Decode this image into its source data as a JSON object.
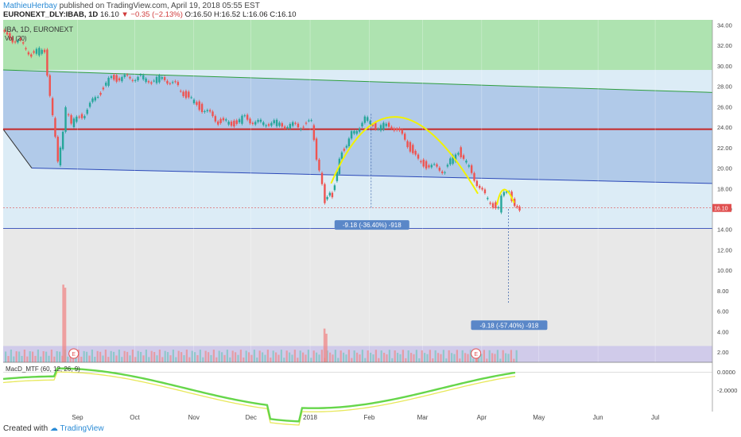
{
  "header": {
    "author": "MathieuHerbay",
    "published": "published on TradingView.com, April 19, 2018 05:55 EST"
  },
  "symbol_bar": {
    "symbol": "EURONEXT_DLY:IBAB, 1D",
    "last": "16.10",
    "change": "−0.35 (−2.13%)",
    "open": "O:16.50",
    "high": "H:16.52",
    "low": "L:16.06",
    "close": "C:16.10"
  },
  "legend": {
    "main": "IBA, 1D, EURONEXT",
    "volume": "Vol (20)",
    "macd": "MacD_MTF (60, 12, 26, 9)"
  },
  "price_tag": "16.10",
  "measurements": [
    {
      "label": "-9.18 (-36.40%) -918"
    },
    {
      "label": "-9.18 (-57.40%) -918"
    }
  ],
  "earnings_marker": "E",
  "footer": {
    "created_with": "Created with",
    "brand": "TradingView"
  },
  "colors": {
    "up": "#26a69a",
    "down": "#ef5350",
    "green_zone": "#a8e2a8",
    "blue_channel": "#a9c4e6",
    "resistance": "#c62828",
    "arc": "#f2f200",
    "macd_green": "#66d64a",
    "macd_red": "#e8382f"
  },
  "chart_data": {
    "type": "candlestick",
    "title": "IBA, 1D, EURONEXT",
    "x_ticks": [
      "Sep",
      "Oct",
      "Nov",
      "Dec",
      "2018",
      "Feb",
      "Mar",
      "Apr",
      "May",
      "Jun",
      "Jul"
    ],
    "price_axis": {
      "ticks": [
        "34.00",
        "32.00",
        "30.00",
        "28.00",
        "26.00",
        "24.00",
        "22.00",
        "20.00",
        "18.00",
        "16.00",
        "14.00",
        "12.00",
        "10.00",
        "8.00",
        "6.00",
        "4.00",
        "2.00"
      ],
      "range": [
        1.0,
        34.5
      ]
    },
    "macd_axis": {
      "ticks": [
        "0.0000",
        "-2.0000"
      ],
      "range": [
        -4.2,
        0.9
      ]
    },
    "close_series": [
      [
        "2017-07-24",
        33.0
      ],
      [
        "2017-07-31",
        32.4
      ],
      [
        "2017-08-07",
        31.2
      ],
      [
        "2017-08-14",
        31.6
      ],
      [
        "2017-08-21",
        20.5
      ],
      [
        "2017-08-25",
        25.6
      ],
      [
        "2017-08-28",
        24.3
      ],
      [
        "2017-09-04",
        25.4
      ],
      [
        "2017-09-11",
        27.2
      ],
      [
        "2017-09-18",
        28.8
      ],
      [
        "2017-09-25",
        28.8
      ],
      [
        "2017-10-02",
        28.9
      ],
      [
        "2017-10-09",
        28.6
      ],
      [
        "2017-10-16",
        28.8
      ],
      [
        "2017-10-23",
        27.9
      ],
      [
        "2017-10-30",
        26.6
      ],
      [
        "2017-11-06",
        25.6
      ],
      [
        "2017-11-13",
        24.6
      ],
      [
        "2017-11-20",
        24.3
      ],
      [
        "2017-11-27",
        24.9
      ],
      [
        "2017-12-04",
        24.4
      ],
      [
        "2017-12-11",
        24.5
      ],
      [
        "2017-12-18",
        24.2
      ],
      [
        "2017-12-25",
        24.1
      ],
      [
        "2018-01-01",
        24.4
      ],
      [
        "2018-01-05",
        19.5
      ],
      [
        "2018-01-08",
        16.7
      ],
      [
        "2018-01-12",
        17.5
      ],
      [
        "2018-01-17",
        21.6
      ],
      [
        "2018-01-22",
        23.3
      ],
      [
        "2018-01-29",
        24.8
      ],
      [
        "2018-02-05",
        24.0
      ],
      [
        "2018-02-12",
        24.2
      ],
      [
        "2018-02-19",
        22.8
      ],
      [
        "2018-02-26",
        20.6
      ],
      [
        "2018-03-05",
        20.1
      ],
      [
        "2018-03-12",
        19.8
      ],
      [
        "2018-03-19",
        21.8
      ],
      [
        "2018-03-26",
        19.5
      ],
      [
        "2018-04-02",
        17.2
      ],
      [
        "2018-04-09",
        16.0
      ],
      [
        "2018-04-12",
        17.9
      ],
      [
        "2018-04-16",
        17.1
      ],
      [
        "2018-04-19",
        16.1
      ]
    ],
    "volume_spikes": [
      [
        "2017-08-24",
        8.6
      ],
      [
        "2017-08-25",
        8.3
      ],
      [
        "2018-01-08",
        4.3
      ],
      [
        "2018-01-09",
        3.8
      ],
      [
        "2018-03-29",
        2.2
      ]
    ],
    "levels": {
      "resistance": 23.8,
      "current": 16.1,
      "green_zone_bottom": 29.6,
      "lower_band": 14.1
    },
    "earnings_dates": [
      "2017-08-30",
      "2018-03-29"
    ]
  }
}
